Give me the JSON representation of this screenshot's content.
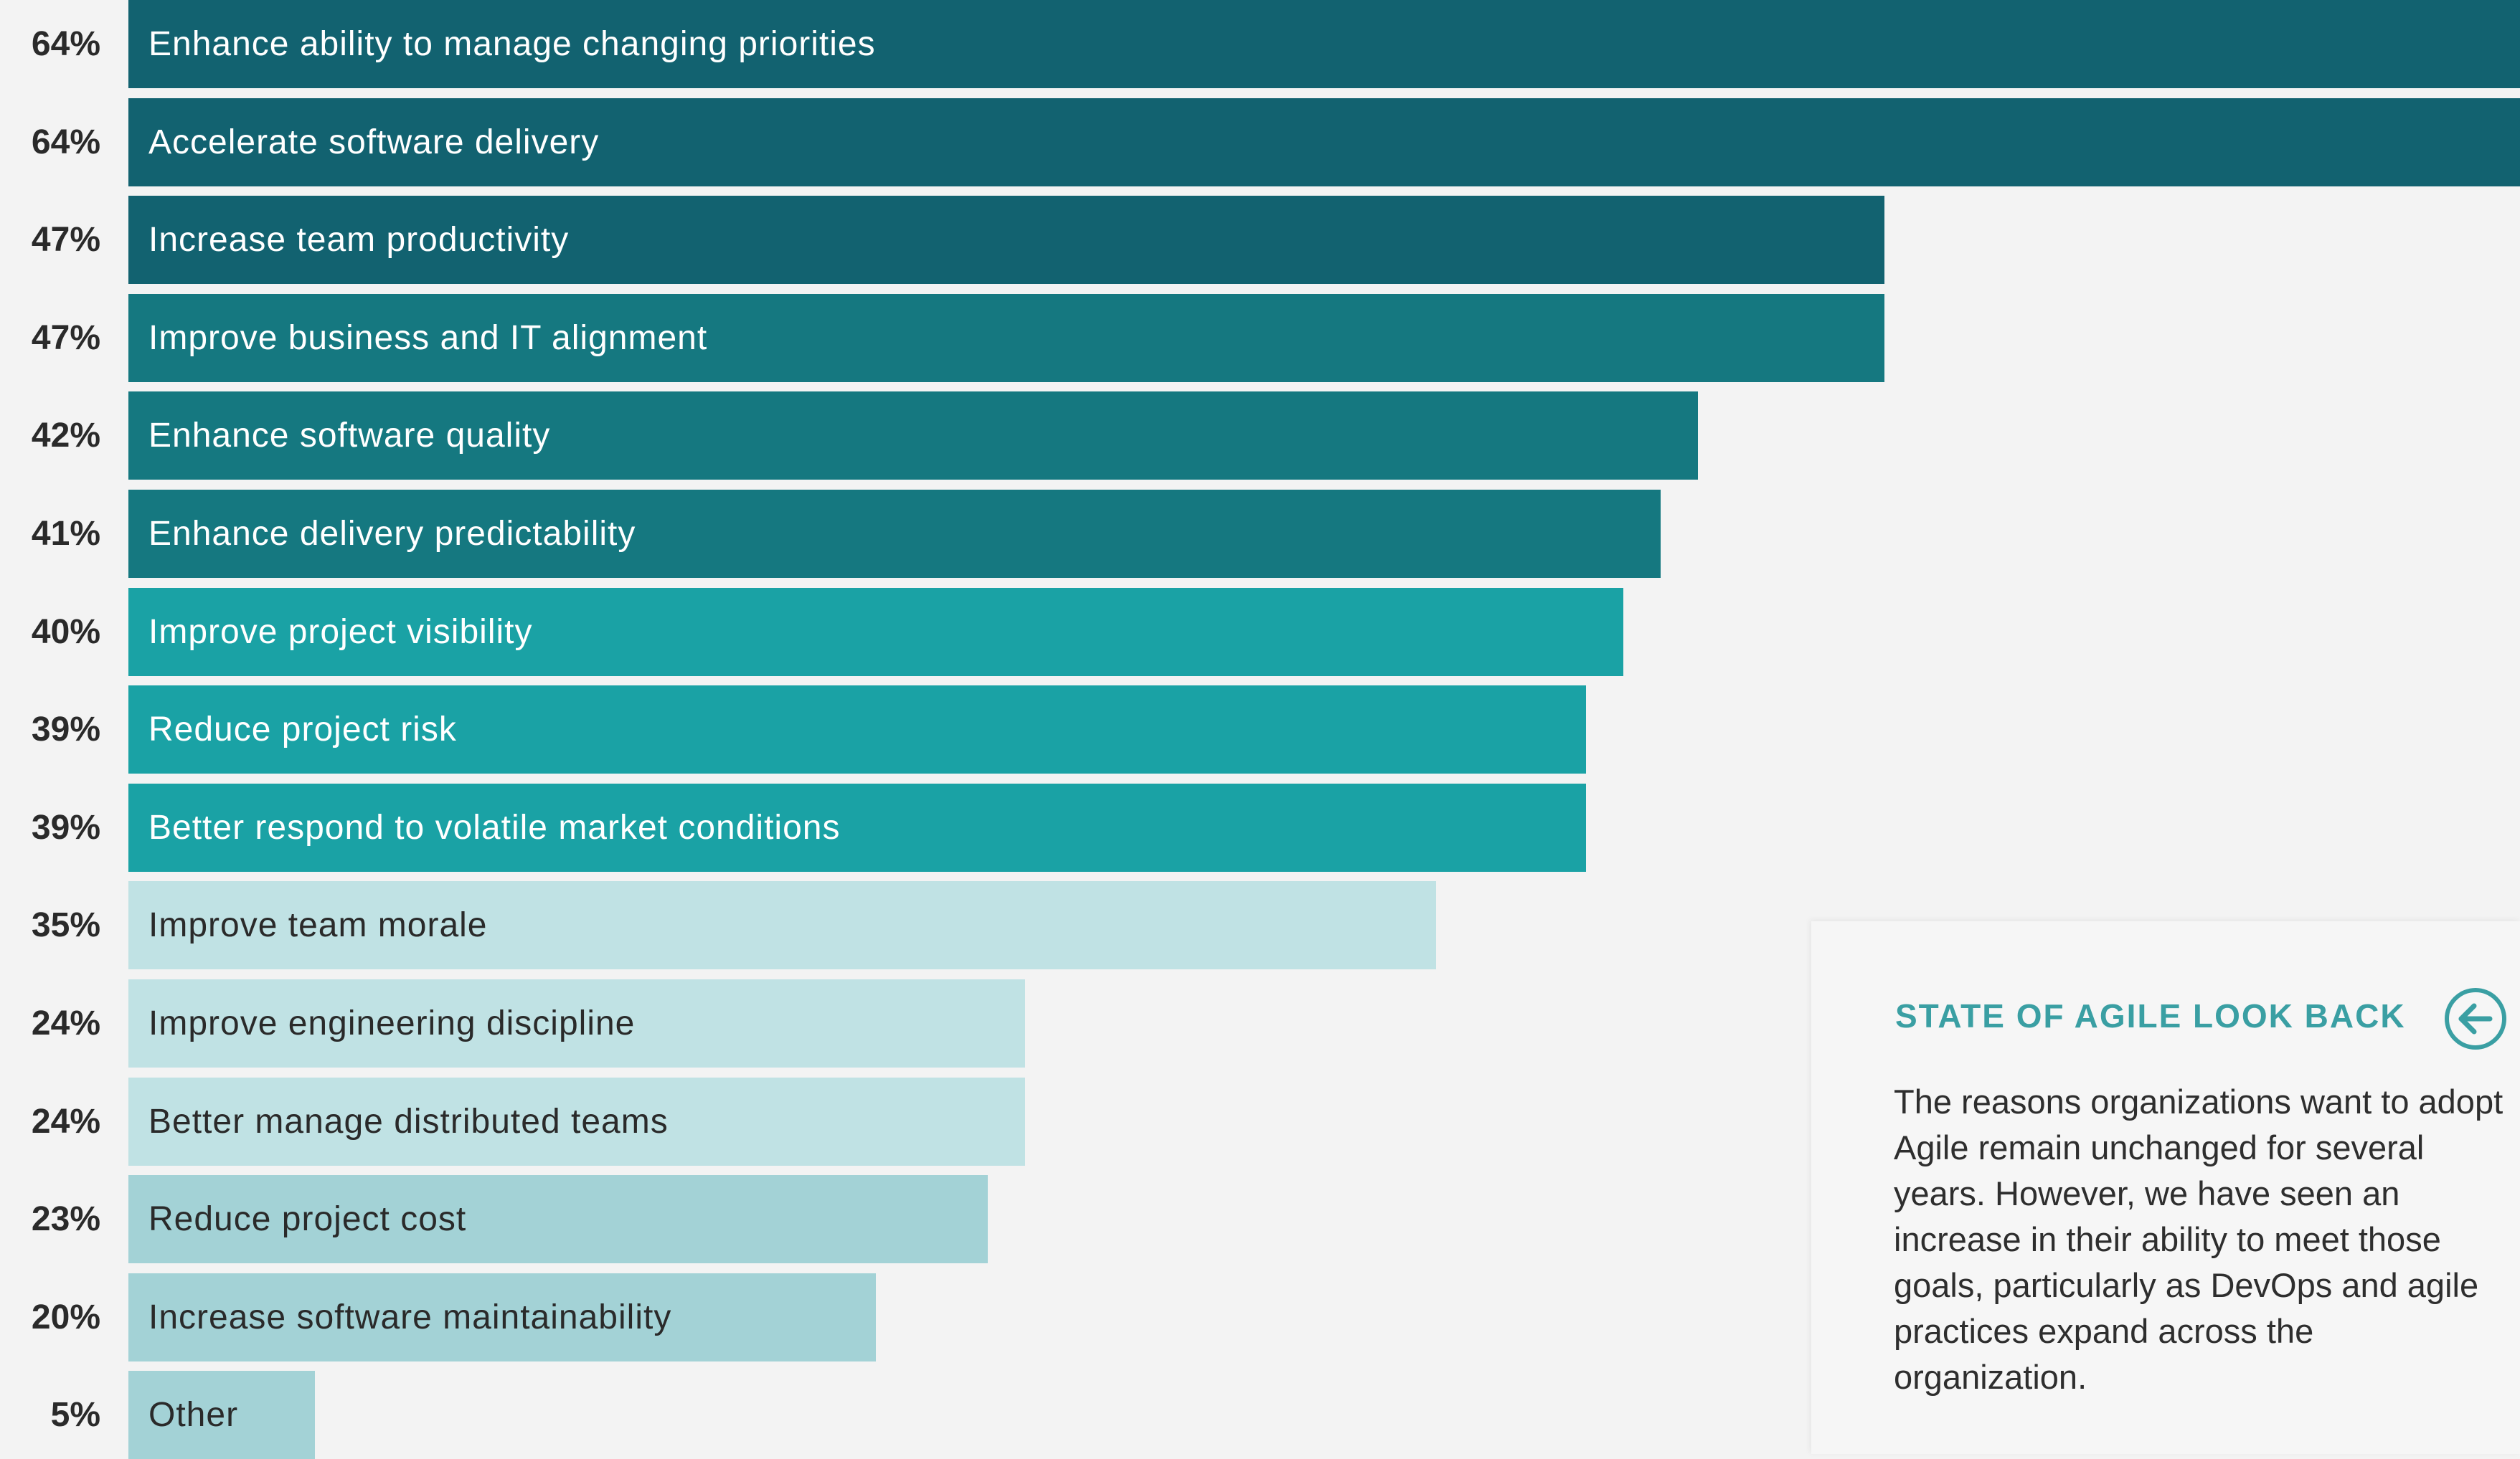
{
  "colors": {
    "dark": "#126270",
    "mid": "#157880",
    "teal": "#1aa2a5",
    "light": "#c0e2e4",
    "lighter": "#a3d2d6",
    "accent": "#3a9fa3"
  },
  "chart_data": {
    "type": "bar",
    "orientation": "horizontal",
    "categories": [
      "Enhance ability to manage changing priorities",
      "Accelerate software delivery",
      "Increase team productivity",
      "Improve business and IT alignment",
      "Enhance software quality",
      "Enhance delivery predictability",
      "Improve project visibility",
      "Reduce project risk",
      "Better respond to volatile market conditions",
      "Improve team morale",
      "Improve engineering discipline",
      "Better manage distributed teams",
      "Reduce project cost",
      "Increase software maintainability",
      "Other"
    ],
    "values": [
      64,
      64,
      47,
      47,
      42,
      41,
      40,
      39,
      39,
      35,
      24,
      24,
      23,
      20,
      5
    ],
    "value_labels": [
      "64%",
      "64%",
      "47%",
      "47%",
      "42%",
      "41%",
      "40%",
      "39%",
      "39%",
      "35%",
      "24%",
      "24%",
      "23%",
      "20%",
      "5%"
    ],
    "bar_colors": [
      "#126270",
      "#126270",
      "#126270",
      "#157880",
      "#157880",
      "#157880",
      "#1aa2a5",
      "#1aa2a5",
      "#1aa2a5",
      "#c0e2e4",
      "#c0e2e4",
      "#c0e2e4",
      "#a3d2d6",
      "#a3d2d6",
      "#a3d2d6"
    ],
    "label_colors": [
      "#ffffff",
      "#ffffff",
      "#ffffff",
      "#ffffff",
      "#ffffff",
      "#ffffff",
      "#ffffff",
      "#ffffff",
      "#ffffff",
      "#2a2a2a",
      "#2a2a2a",
      "#2a2a2a",
      "#2a2a2a",
      "#2a2a2a",
      "#2a2a2a"
    ],
    "xlim": [
      0,
      64
    ],
    "grid": false
  },
  "lookback": {
    "title": "STATE OF AGILE LOOK BACK",
    "icon": "arrow-left-circle-icon",
    "body": "The reasons organizations want to adopt Agile remain unchanged for several years. However, we have seen an increase in their ability to meet those goals, particularly as DevOps and agile practices expand across the organization."
  }
}
